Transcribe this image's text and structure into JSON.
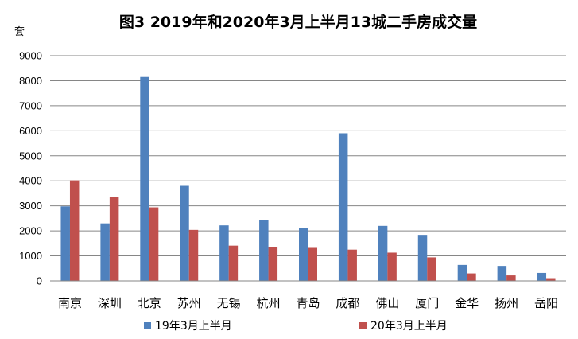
{
  "chart_data": {
    "type": "bar",
    "title": "图3  2019年和2020年3月上半月13城二手房成交量",
    "ylabel": "套",
    "xlabel": "",
    "ylim": [
      0,
      9000
    ],
    "yticks": [
      0,
      1000,
      2000,
      3000,
      4000,
      5000,
      6000,
      7000,
      8000,
      9000
    ],
    "grid": true,
    "legend_position": "bottom",
    "categories": [
      "南京",
      "深圳",
      "北京",
      "苏州",
      "无锡",
      "杭州",
      "青岛",
      "成都",
      "佛山",
      "厦门",
      "金华",
      "扬州",
      "岳阳"
    ],
    "series": [
      {
        "name": "19年3月上半月",
        "color": "#4F81BD",
        "values": [
          2980,
          2300,
          8150,
          3800,
          2220,
          2430,
          2110,
          5900,
          2200,
          1840,
          640,
          600,
          320
        ]
      },
      {
        "name": "20年3月上半月",
        "color": "#C0504D",
        "values": [
          4020,
          3360,
          2940,
          2040,
          1410,
          1350,
          1320,
          1250,
          1130,
          940,
          300,
          220,
          110
        ]
      }
    ]
  }
}
